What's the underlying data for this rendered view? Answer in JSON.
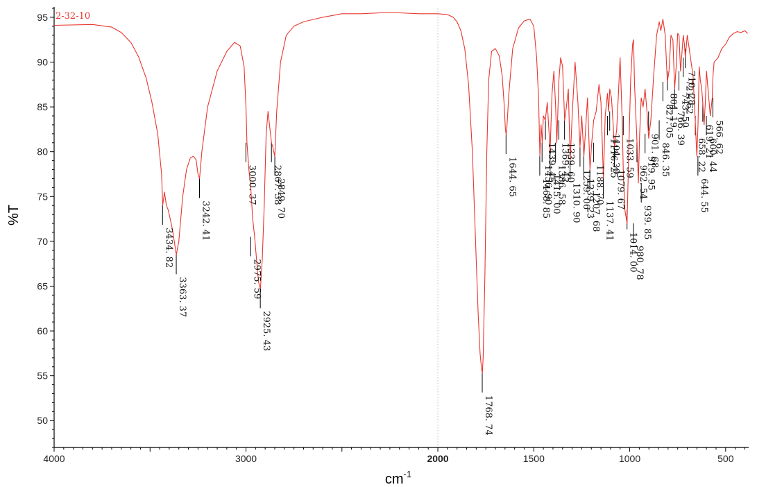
{
  "chart_data": {
    "type": "line",
    "title": "",
    "xlabel": "cm",
    "xlabel_sup": "-1",
    "ylabel": "%T",
    "sample_label": "2-32-10",
    "x_reversed": true,
    "xlim": [
      4000,
      380
    ],
    "ylim": [
      47,
      96
    ],
    "grid": "single vertical dotted line at 2000",
    "line_color": "#e8352e",
    "x_ticks": [
      {
        "value": 4000,
        "label": "4000"
      },
      {
        "value": 3000,
        "label": "3000"
      },
      {
        "value": 2000,
        "label": "2000"
      },
      {
        "value": 1500,
        "label": "1500"
      },
      {
        "value": 1000,
        "label": "1000"
      },
      {
        "value": 500,
        "label": "500"
      }
    ],
    "y_ticks": [
      {
        "value": 95,
        "label": "95"
      },
      {
        "value": 90,
        "label": "90"
      },
      {
        "value": 85,
        "label": "85"
      },
      {
        "value": 80,
        "label": "80"
      },
      {
        "value": 75,
        "label": "75"
      },
      {
        "value": 70,
        "label": "70"
      },
      {
        "value": 65,
        "label": "65"
      },
      {
        "value": 60,
        "label": "60"
      },
      {
        "value": 55,
        "label": "55"
      },
      {
        "value": 50,
        "label": "50"
      }
    ],
    "series": [
      {
        "x": [
          4000,
          3800,
          3700,
          3650,
          3600,
          3560,
          3520,
          3490,
          3460,
          3440,
          3434,
          3425,
          3415,
          3405,
          3395,
          3385,
          3375,
          3363,
          3350,
          3330,
          3310,
          3290,
          3275,
          3260,
          3250,
          3242,
          3230,
          3200,
          3150,
          3100,
          3060,
          3030,
          3010,
          3000,
          2995,
          2985,
          2975,
          2965,
          2955,
          2945,
          2935,
          2925,
          2915,
          2905,
          2895,
          2885,
          2875,
          2867,
          2860,
          2850,
          2849,
          2840,
          2820,
          2790,
          2750,
          2700,
          2600,
          2500,
          2400,
          2300,
          2200,
          2100,
          2000,
          1950,
          1920,
          1900,
          1880,
          1860,
          1840,
          1820,
          1800,
          1790,
          1780,
          1772,
          1768,
          1764,
          1755,
          1745,
          1735,
          1720,
          1700,
          1680,
          1665,
          1655,
          1648,
          1644,
          1640,
          1630,
          1610,
          1580,
          1550,
          1520,
          1500,
          1485,
          1475,
          1468,
          1462,
          1456,
          1450,
          1440,
          1430,
          1420,
          1415,
          1405,
          1395,
          1386,
          1380,
          1369,
          1360,
          1350,
          1339,
          1330,
          1320,
          1310,
          1300,
          1285,
          1270,
          1259,
          1250,
          1239,
          1230,
          1220,
          1207,
          1198,
          1188,
          1175,
          1160,
          1150,
          1137,
          1128,
          1116,
          1110,
          1104,
          1095,
          1079,
          1068,
          1060,
          1050,
          1040,
          1033,
          1025,
          1014,
          1005,
          995,
          985,
          980,
          975,
          962,
          955,
          948,
          940,
          930,
          920,
          910,
          901,
          890,
          875,
          860,
          846,
          838,
          827,
          815,
          804,
          795,
          785,
          775,
          766,
          758,
          750,
          743,
          735,
          728,
          721,
          715,
          710,
          700,
          690,
          680,
          670,
          660,
          650,
          644,
          638,
          632,
          625,
          619,
          612,
          606,
          600,
          590,
          580,
          570,
          566,
          560,
          540,
          520,
          500,
          480,
          460,
          440,
          420,
          400,
          385
        ],
        "y": [
          94.1,
          94.2,
          93.9,
          93.3,
          92.2,
          90.6,
          88.2,
          85.5,
          82.0,
          77.5,
          74.0,
          75.5,
          74.0,
          73.5,
          72.5,
          71.5,
          70.2,
          68.5,
          70.0,
          75.0,
          78.0,
          79.3,
          79.5,
          79.1,
          77.5,
          77.0,
          80.0,
          85.0,
          89.0,
          91.2,
          92.2,
          91.8,
          89.5,
          85.0,
          81.0,
          78.0,
          76.0,
          72.5,
          70.5,
          68.0,
          65.5,
          64.7,
          68.0,
          74.0,
          82.0,
          84.5,
          82.5,
          81.0,
          80.5,
          79.5,
          80.0,
          84.5,
          90.0,
          93.0,
          94.0,
          94.5,
          95.0,
          95.4,
          95.4,
          95.5,
          95.5,
          95.4,
          95.4,
          95.3,
          95.0,
          94.5,
          93.5,
          91.5,
          87.5,
          80.0,
          68.0,
          62.0,
          57.5,
          55.7,
          55.3,
          57.0,
          66.0,
          80.0,
          88.0,
          91.2,
          91.5,
          90.7,
          88.5,
          85.5,
          82.5,
          81.9,
          82.8,
          86.5,
          91.5,
          93.8,
          94.6,
          94.8,
          94.0,
          90.5,
          86.0,
          79.5,
          83.0,
          81.0,
          84.0,
          83.5,
          85.5,
          82.0,
          80.0,
          86.5,
          89.0,
          85.0,
          81.0,
          88.0,
          90.5,
          89.5,
          83.5,
          85.0,
          87.0,
          79.0,
          84.0,
          90.0,
          85.5,
          80.5,
          84.0,
          79.5,
          82.5,
          86.0,
          78.0,
          81.0,
          83.5,
          84.5,
          87.5,
          85.5,
          77.0,
          84.0,
          86.5,
          84.5,
          87.0,
          86.0,
          80.5,
          82.5,
          86.0,
          90.5,
          84.0,
          77.5,
          73.5,
          72.0,
          80.0,
          88.0,
          92.0,
          92.5,
          87.5,
          81.0,
          76.5,
          82.0,
          86.0,
          85.0,
          87.0,
          84.5,
          81.5,
          83.5,
          88.5,
          93.0,
          94.5,
          93.5,
          94.8,
          93.0,
          87.8,
          89.0,
          93.0,
          92.5,
          87.0,
          89.5,
          93.2,
          93.0,
          89.0,
          91.0,
          93.0,
          92.0,
          90.5,
          93.0,
          91.5,
          90.0,
          88.5,
          84.0,
          79.5,
          83.0,
          89.5,
          88.0,
          87.0,
          85.5,
          83.0,
          85.5,
          89.0,
          86.5,
          84.0,
          86.0,
          88.5,
          90.0,
          90.5,
          91.5,
          92.0,
          92.8,
          93.2,
          93.4,
          93.3,
          93.5,
          93.2
        ]
      }
    ],
    "peaks": [
      {
        "x": 3434.82,
        "y": 74.0,
        "label": "3434. 82"
      },
      {
        "x": 3363.37,
        "y": 68.5,
        "label": "3363. 37"
      },
      {
        "x": 3242.41,
        "y": 77.0,
        "label": "3242. 41"
      },
      {
        "x": 3000.37,
        "y": 81.0,
        "label": "3000. 37"
      },
      {
        "x": 2975.59,
        "y": 70.5,
        "label": "2975. 59"
      },
      {
        "x": 2925.43,
        "y": 64.7,
        "label": "2925. 43"
      },
      {
        "x": 2867.38,
        "y": 81.0,
        "label": "2867. 38"
      },
      {
        "x": 2849.7,
        "y": 79.5,
        "label": "2849. 70"
      },
      {
        "x": 1768.74,
        "y": 55.3,
        "label": "1768. 74"
      },
      {
        "x": 1644.65,
        "y": 81.9,
        "label": "1644. 65"
      },
      {
        "x": 1468.85,
        "y": 79.5,
        "label": "1468. 85"
      },
      {
        "x": 1456.9,
        "y": 81.0,
        "label": "1456. 90"
      },
      {
        "x": 1439.45,
        "y": 83.5,
        "label": "1439. 45"
      },
      {
        "x": 1415.0,
        "y": 80.0,
        "label": "1415. 00"
      },
      {
        "x": 1386.58,
        "y": 81.0,
        "label": "1386. 58"
      },
      {
        "x": 1369.42,
        "y": 83.5,
        "label": "1369. 42"
      },
      {
        "x": 1339.6,
        "y": 83.5,
        "label": "1339. 60"
      },
      {
        "x": 1310.9,
        "y": 79.0,
        "label": "1310. 90"
      },
      {
        "x": 1259.06,
        "y": 80.5,
        "label": "1259. 06"
      },
      {
        "x": 1239.23,
        "y": 79.5,
        "label": "1239. 23"
      },
      {
        "x": 1207.68,
        "y": 78.0,
        "label": "1207. 68"
      },
      {
        "x": 1188.7,
        "y": 81.0,
        "label": "1188. 70"
      },
      {
        "x": 1137.41,
        "y": 77.0,
        "label": "1137. 41"
      },
      {
        "x": 1116.25,
        "y": 84.0,
        "label": "1116. 25"
      },
      {
        "x": 1104.3,
        "y": 84.5,
        "label": "1104. 30"
      },
      {
        "x": 1079.67,
        "y": 80.5,
        "label": "1079. 67"
      },
      {
        "x": 1033.59,
        "y": 84.0,
        "label": "1033. 59"
      },
      {
        "x": 1014.0,
        "y": 73.5,
        "label": "1014. 00"
      },
      {
        "x": 980.78,
        "y": 72.0,
        "label": "980. 78"
      },
      {
        "x": 962.54,
        "y": 81.0,
        "label": "962. 54"
      },
      {
        "x": 939.85,
        "y": 76.5,
        "label": "939. 85"
      },
      {
        "x": 919.95,
        "y": 82.0,
        "label": "919. 95"
      },
      {
        "x": 901.68,
        "y": 84.5,
        "label": "901. 68"
      },
      {
        "x": 846.35,
        "y": 83.5,
        "label": "846. 35"
      },
      {
        "x": 827.05,
        "y": 87.8,
        "label": "827. 05"
      },
      {
        "x": 804.19,
        "y": 89.0,
        "label": "804. 19"
      },
      {
        "x": 766.39,
        "y": 87.0,
        "label": "766. 39"
      },
      {
        "x": 743.5,
        "y": 89.0,
        "label": "743. 50"
      },
      {
        "x": 721.62,
        "y": 90.5,
        "label": "721. 62"
      },
      {
        "x": 710.28,
        "y": 91.5,
        "label": "710. 28"
      },
      {
        "x": 658.22,
        "y": 84.0,
        "label": "658. 22"
      },
      {
        "x": 644.55,
        "y": 79.5,
        "label": "644. 55"
      },
      {
        "x": 619.21,
        "y": 85.5,
        "label": "619. 21"
      },
      {
        "x": 600.44,
        "y": 84.0,
        "label": "600. 44"
      },
      {
        "x": 566.62,
        "y": 86.0,
        "label": "566. 62"
      }
    ]
  }
}
